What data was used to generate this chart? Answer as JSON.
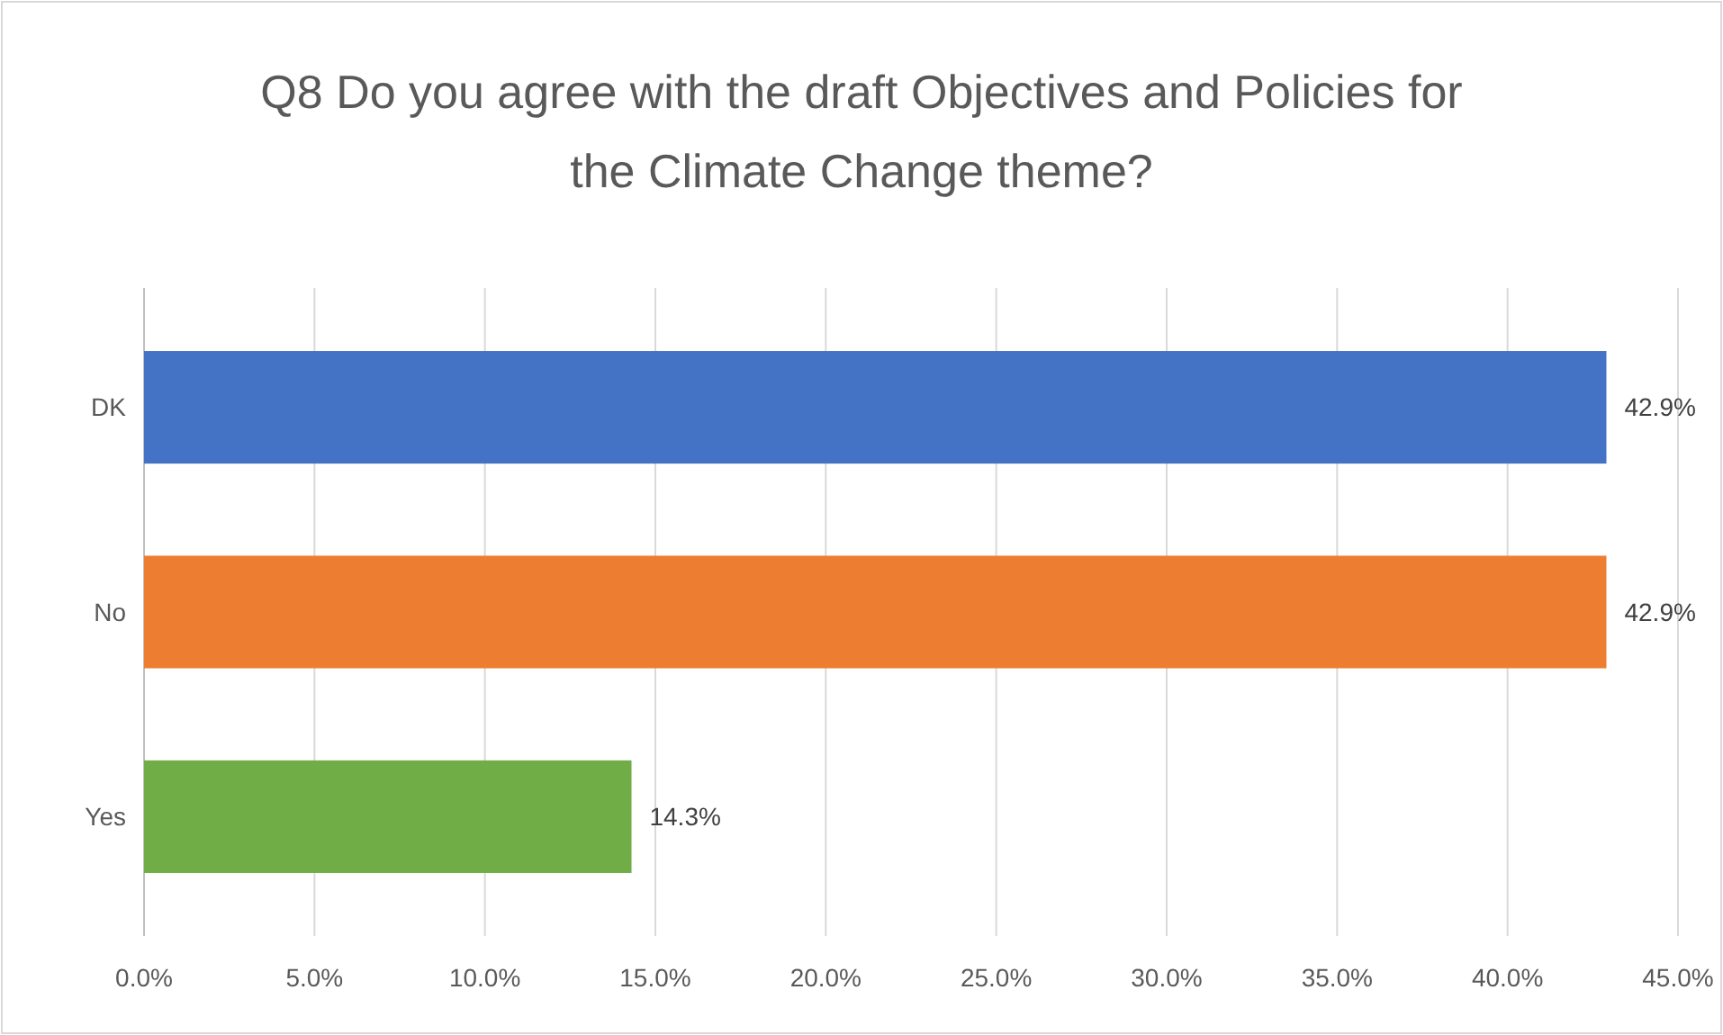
{
  "chart_data": {
    "type": "bar",
    "orientation": "horizontal",
    "title": "Q8 Do you agree with the draft Objectives and Policies for the Climate Change theme?",
    "categories": [
      "DK",
      "No",
      "Yes"
    ],
    "values": [
      42.9,
      42.9,
      14.3
    ],
    "colors": [
      "#4472c4",
      "#ed7d31",
      "#70ad47"
    ],
    "value_labels": [
      "42.9%",
      "42.9%",
      "14.3%"
    ],
    "xlim": [
      0,
      45
    ],
    "xticks": [
      {
        "value": 0,
        "label": "0.0%"
      },
      {
        "value": 5,
        "label": "5.0%"
      },
      {
        "value": 10,
        "label": "10.0%"
      },
      {
        "value": 15,
        "label": "15.0%"
      },
      {
        "value": 20,
        "label": "20.0%"
      },
      {
        "value": 25,
        "label": "25.0%"
      },
      {
        "value": 30,
        "label": "30.0%"
      },
      {
        "value": 35,
        "label": "35.0%"
      },
      {
        "value": 40,
        "label": "40.0%"
      },
      {
        "value": 45,
        "label": "45.0%"
      }
    ],
    "grid": "x"
  }
}
